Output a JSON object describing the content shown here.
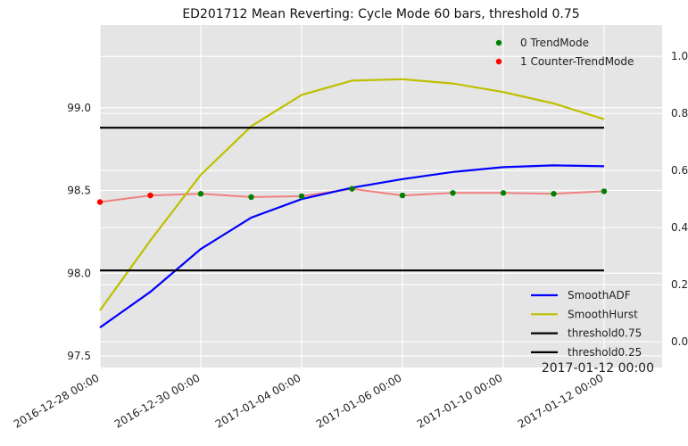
{
  "chart_data": {
    "type": "line",
    "title": "ED201712 Mean Reverting: Cycle Mode 60 bars, threshold 0.75",
    "x_tick_labels": [
      "2016-12-28 00:00",
      "2016-12-30 00:00",
      "2017-01-04 00:00",
      "2017-01-06 00:00",
      "2017-01-10 00:00",
      "2017-01-12 00:00"
    ],
    "x_offset_label": "2017-01-12 00:00",
    "left_axis": {
      "ylim": [
        97.43,
        99.5
      ],
      "ticks": [
        "97.5",
        "98.0",
        "98.5",
        "99.0"
      ],
      "tick_values": [
        97.5,
        98.0,
        98.5,
        99.0
      ]
    },
    "right_axis": {
      "ylim": [
        -0.09,
        1.11
      ],
      "ticks": [
        "0.0",
        "0.2",
        "0.4",
        "0.6",
        "0.8",
        "1.0"
      ],
      "tick_values": [
        0.0,
        0.2,
        0.4,
        0.6,
        0.8,
        1.0
      ]
    },
    "price_series": {
      "color": "#f08080",
      "x": [
        0,
        1,
        2,
        3,
        4,
        5,
        6,
        7,
        8,
        9,
        10
      ],
      "values": [
        98.43,
        98.47,
        98.48,
        98.46,
        98.465,
        98.51,
        98.47,
        98.485,
        98.485,
        98.48,
        98.495
      ],
      "modes": [
        1,
        1,
        0,
        0,
        0,
        0,
        0,
        0,
        0,
        0,
        0
      ]
    },
    "legend_top": [
      {
        "label": "0 TrendMode",
        "color": "#008000",
        "mode": 0
      },
      {
        "label": "1 Counter-TrendMode",
        "color": "#ff0000",
        "mode": 1
      }
    ],
    "series": [
      {
        "name": "SmoothADF",
        "color": "#0000ff",
        "x": [
          0,
          1,
          2,
          3,
          4,
          5,
          6,
          7,
          8,
          9,
          10
        ],
        "values": [
          0.05,
          0.175,
          0.325,
          0.435,
          0.5,
          0.54,
          0.57,
          0.595,
          0.612,
          0.618,
          0.615
        ]
      },
      {
        "name": "SmoothHurst",
        "color": "#bfbf00",
        "x": [
          0,
          1,
          2,
          3,
          4,
          5,
          6,
          7,
          8,
          9,
          10
        ],
        "values": [
          0.11,
          0.355,
          0.585,
          0.755,
          0.865,
          0.915,
          0.92,
          0.905,
          0.875,
          0.835,
          0.78
        ]
      },
      {
        "name": "threshold0.75",
        "color": "#000000",
        "x": [
          0,
          10
        ],
        "values": [
          0.75,
          0.75
        ]
      },
      {
        "name": "threshold0.25",
        "color": "#000000",
        "x": [
          0,
          10
        ],
        "values": [
          0.25,
          0.25
        ]
      }
    ],
    "grid": true,
    "legend_placement": [
      "top-right",
      "bottom-right"
    ]
  }
}
